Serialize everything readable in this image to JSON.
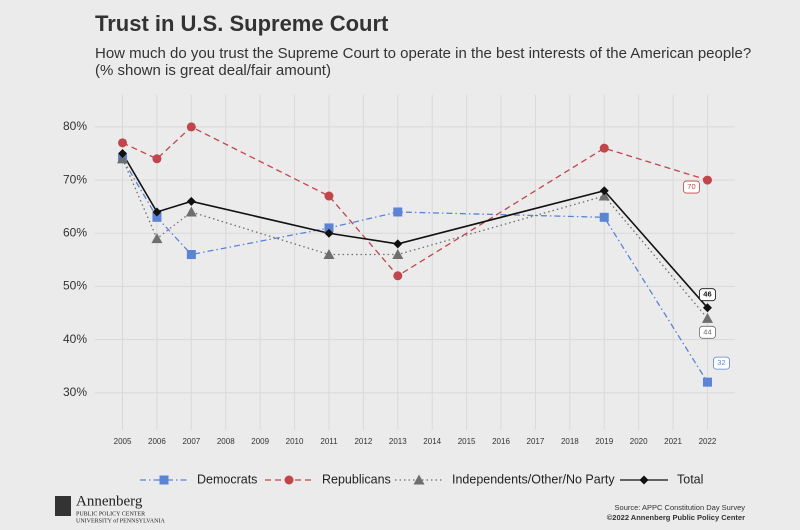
{
  "chart_data": {
    "type": "line",
    "title": "Trust in U.S. Supreme Court",
    "subtitle": "How much do you trust the Supreme Court to operate in the best interests of the American people?",
    "subtitle2": "(% shown is great deal/fair amount)",
    "x": [
      2005,
      2006,
      2007,
      2011,
      2013,
      2019,
      2022
    ],
    "xlim": [
      2004.2,
      2022.8
    ],
    "xticks": [
      2005,
      2006,
      2007,
      2008,
      2009,
      2010,
      2011,
      2012,
      2013,
      2014,
      2015,
      2016,
      2017,
      2018,
      2019,
      2020,
      2021,
      2022
    ],
    "ylim": [
      23,
      86
    ],
    "yticks": [
      {
        "value": 30,
        "label": "30%"
      },
      {
        "value": 40,
        "label": "40%"
      },
      {
        "value": 50,
        "label": "50%"
      },
      {
        "value": 60,
        "label": "60%"
      },
      {
        "value": 70,
        "label": "70%"
      },
      {
        "value": 80,
        "label": "80%"
      }
    ],
    "grid": true,
    "legend": "bottom",
    "series": [
      {
        "name": "Democrats",
        "color": "#5b84d6",
        "marker": "square",
        "dash": "dashdot",
        "values": [
          74,
          63,
          56,
          61,
          64,
          63,
          32
        ]
      },
      {
        "name": "Republicans",
        "color": "#c0464b",
        "marker": "circle",
        "dash": "dashed",
        "values": [
          77,
          74,
          80,
          67,
          52,
          76,
          70
        ]
      },
      {
        "name": "Independents/Other/No Party",
        "color": "#6e6e6e",
        "marker": "triangle",
        "dash": "dotted",
        "values": [
          74,
          59,
          64,
          56,
          56,
          67,
          44
        ]
      },
      {
        "name": "Total",
        "color": "#111111",
        "marker": "diamond",
        "dash": "solid",
        "values": [
          75,
          64,
          66,
          60,
          58,
          68,
          46
        ]
      }
    ],
    "logo": {
      "name": "Annenberg",
      "line1": "PUBLIC POLICY CENTER",
      "line2": "UNIVERSITY of PENNSYLVANIA"
    },
    "source": "Source: APPC Constitution Day Survey",
    "credit": "©2022 Annenberg Public Policy Center"
  }
}
